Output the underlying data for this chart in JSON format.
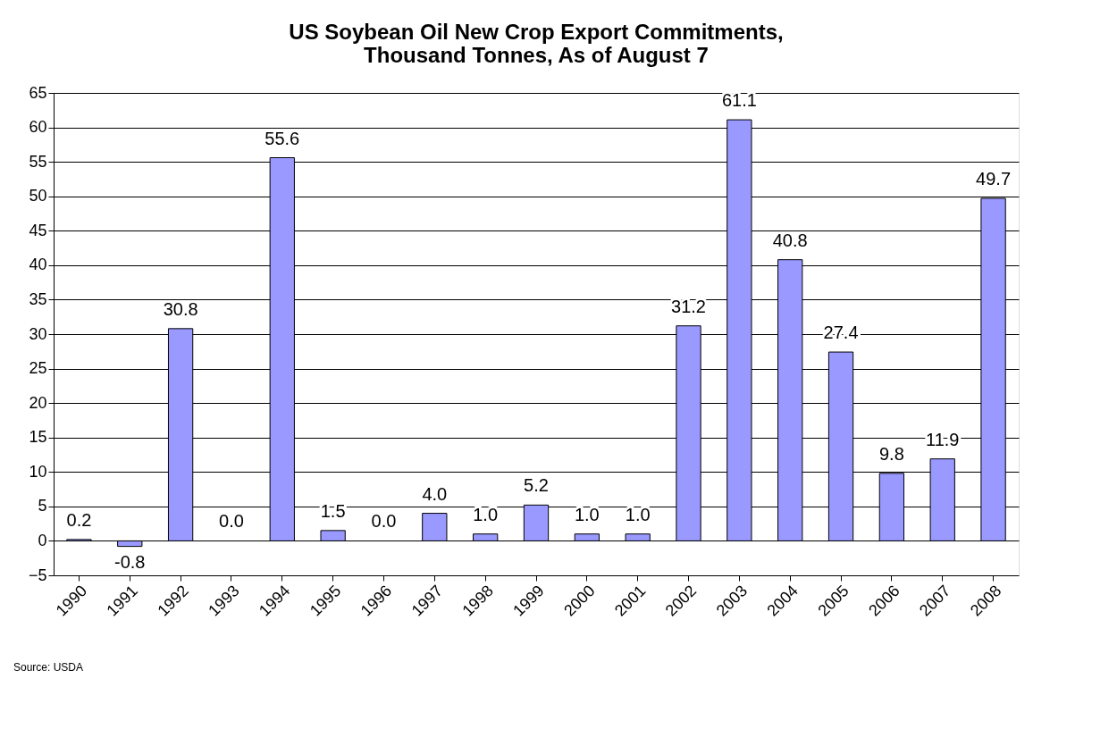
{
  "chart_data": {
    "type": "bar",
    "title": [
      "US Soybean Oil New Crop Export Commitments,",
      "Thousand Tonnes, As of August 7"
    ],
    "categories": [
      "1990",
      "1991",
      "1992",
      "1993",
      "1994",
      "1995",
      "1996",
      "1997",
      "1998",
      "1999",
      "2000",
      "2001",
      "2002",
      "2003",
      "2004",
      "2005",
      "2006",
      "2007",
      "2008"
    ],
    "values": [
      0.2,
      -0.8,
      30.8,
      0.0,
      55.6,
      1.5,
      0.0,
      4.0,
      1.0,
      5.2,
      1.0,
      1.0,
      31.2,
      61.1,
      40.8,
      27.4,
      9.8,
      11.9,
      49.7
    ],
    "color": "#9999ff",
    "ylim": [
      -5,
      65
    ],
    "yticks": [
      -5,
      0,
      5,
      10,
      15,
      20,
      25,
      30,
      35,
      40,
      45,
      50,
      55,
      60,
      65
    ],
    "grid": "y",
    "value_labels": [
      "0.2",
      "-0.8",
      "30.8",
      "0.0",
      "55.6",
      "1.5",
      "0.0",
      "4.0",
      "1.0",
      "5.2",
      "1.0",
      "1.0",
      "31.2",
      "61.1",
      "40.8",
      "27.4",
      "9.8",
      "11.9",
      "49.7"
    ],
    "annotations": [
      "Source: USDA"
    ]
  }
}
